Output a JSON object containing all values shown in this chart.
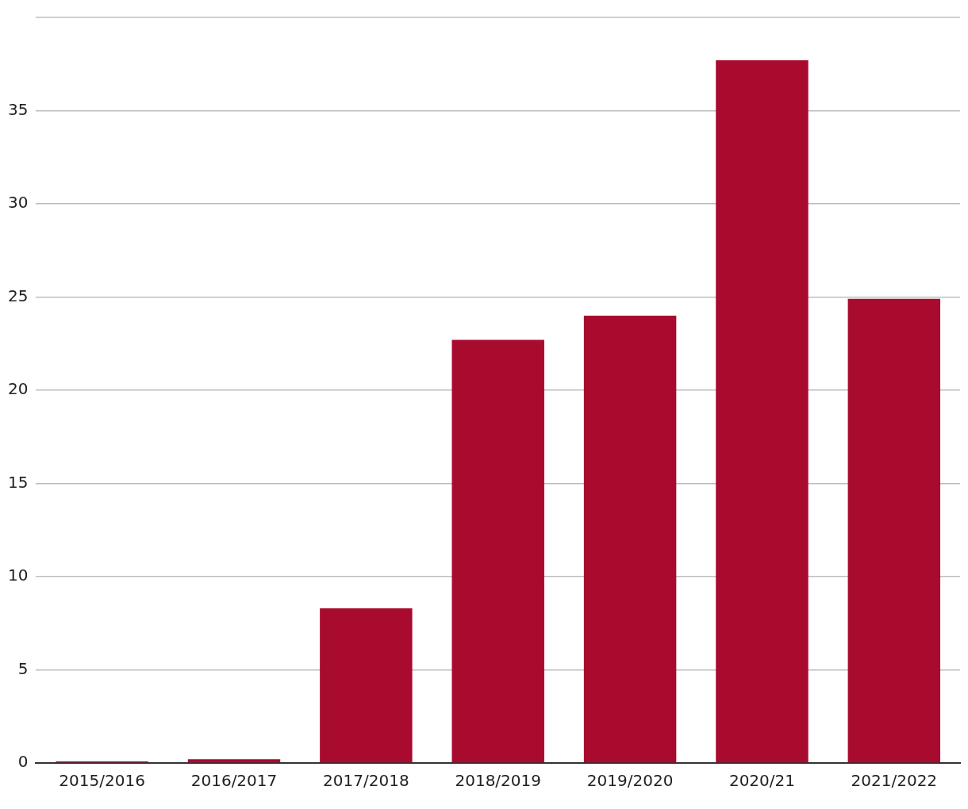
{
  "chart_data": {
    "type": "bar",
    "categories": [
      "2015/2016",
      "2016/2017",
      "2017/2018",
      "2018/2019",
      "2019/2020",
      "2020/21",
      "2021/2022"
    ],
    "values": [
      0.08,
      0.2,
      8.3,
      22.7,
      24.0,
      37.7,
      24.9
    ],
    "color": "#a80b2e",
    "ylim": [
      0,
      40
    ],
    "yticks": [
      0,
      5,
      10,
      15,
      20,
      25,
      30,
      35,
      {
        "value": 40,
        "label": null
      }
    ],
    "grid": "y",
    "legend": false
  }
}
